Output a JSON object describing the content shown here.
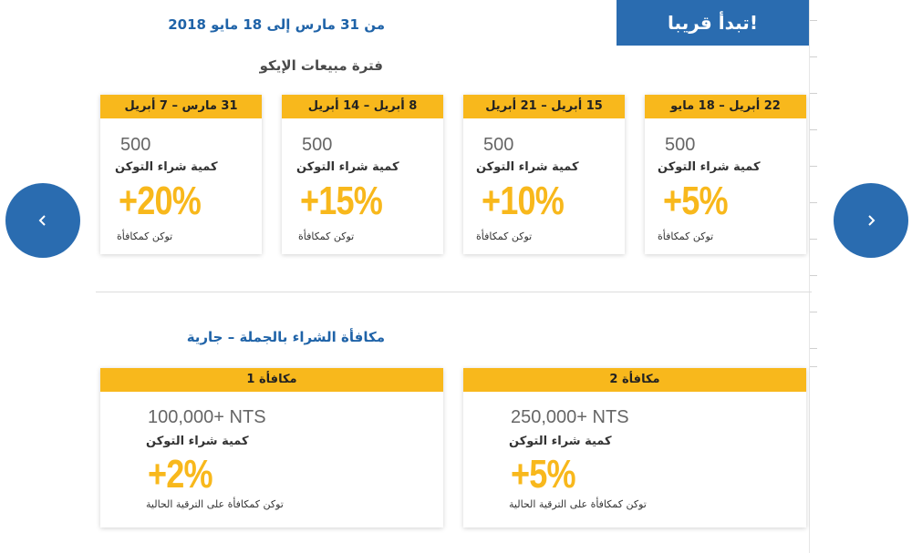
{
  "header": {
    "coming_soon": "تبدأ قريبا!",
    "date_range": "من 31 مارس إلى 18 مايو 2018"
  },
  "ico_section": {
    "title": "فترة مبيعات الإيكو",
    "cards": [
      {
        "period": "31 مارس – 7 أبريل",
        "quantity": "500",
        "quantity_label": "كمية شراء التوكن",
        "bonus": "+20%",
        "note": "توكن كمكافأة"
      },
      {
        "period": "8 أبريل – 14 أبريل",
        "quantity": "500",
        "quantity_label": "كمية شراء التوكن",
        "bonus": "+15%",
        "note": "توكن كمكافأة"
      },
      {
        "period": "15 أبريل – 21 أبريل",
        "quantity": "500",
        "quantity_label": "كمية شراء التوكن",
        "bonus": "+10%",
        "note": "توكن كمكافأة"
      },
      {
        "period": "22 أبريل – 18 مايو",
        "quantity": "500",
        "quantity_label": "كمية شراء التوكن",
        "bonus": "+5%",
        "note": "توكن كمكافأة"
      }
    ]
  },
  "bulk_section": {
    "title": "مكافأة الشراء بالجملة – جارية",
    "cards": [
      {
        "label": "مكافأة 1",
        "quantity": "100,000+ NTS",
        "quantity_label": "كمية شراء التوكن",
        "bonus": "+2%",
        "note": "توكن كمكافأة على الترقية الحالية"
      },
      {
        "label": "مكافأة 2",
        "quantity": "250,000+ NTS",
        "quantity_label": "كمية شراء التوكن",
        "bonus": "+5%",
        "note": "توكن كمكافأة على الترقية الحالية"
      }
    ]
  },
  "nav": {
    "prev_icon": "chevron-left-icon",
    "next_icon": "chevron-right-icon"
  },
  "colors": {
    "brand_blue": "#2a6cb0",
    "accent_yellow": "#f8b81c"
  }
}
